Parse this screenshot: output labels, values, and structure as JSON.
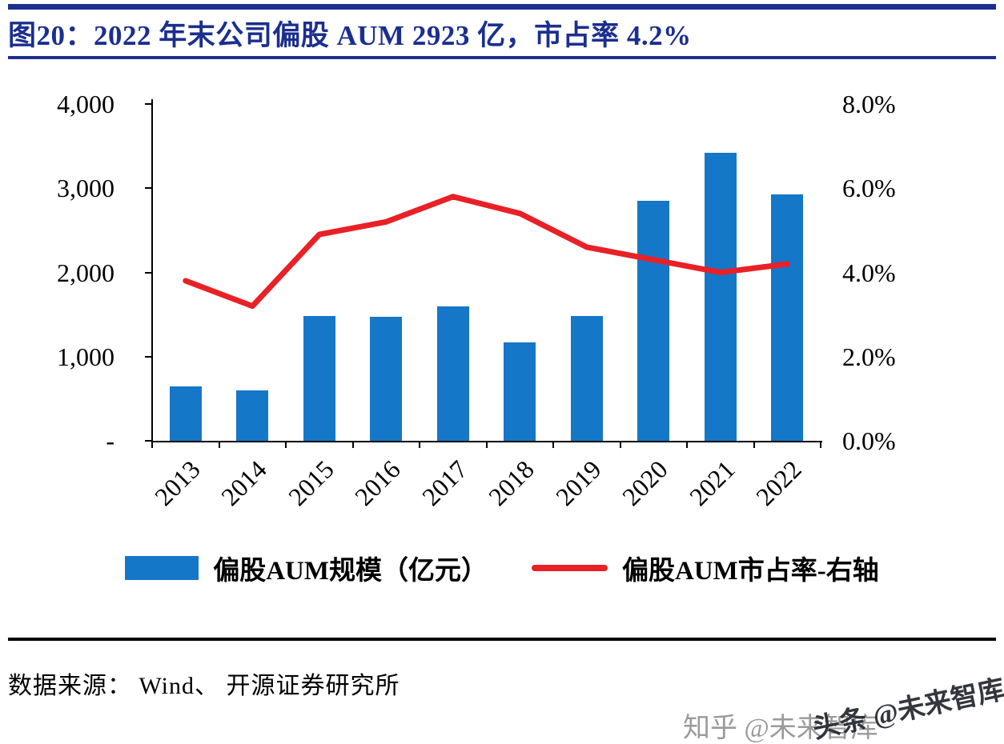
{
  "header": {
    "title": "图20：2022 年末公司偏股 AUM 2923 亿，市占率 4.2%"
  },
  "colors": {
    "navy": "#1b2f8f",
    "bar_blue": "#1577c8",
    "line_red": "#e82127",
    "axis_black": "#000000",
    "watermark_gray": "#9a9a9a"
  },
  "chart_data": {
    "type": "bar",
    "subtype": "bar+line combo",
    "title": "图20：2022 年末公司偏股 AUM 2923 亿，市占率 4.2%",
    "categories": [
      "2013",
      "2014",
      "2015",
      "2016",
      "2017",
      "2018",
      "2019",
      "2020",
      "2021",
      "2022"
    ],
    "series": [
      {
        "name": "偏股AUM规模（亿元）",
        "type": "bar",
        "axis": "left",
        "values": [
          650,
          600,
          1480,
          1470,
          1600,
          1170,
          1480,
          2850,
          3420,
          2923
        ]
      },
      {
        "name": "偏股AUM市占率-右轴",
        "type": "line",
        "axis": "right",
        "values": [
          3.8,
          3.2,
          4.9,
          5.2,
          5.8,
          5.4,
          4.6,
          4.3,
          4.0,
          4.2
        ]
      }
    ],
    "left_axis": {
      "min": 0,
      "max": 4000,
      "ticks": [
        "4,000",
        "3,000",
        "2,000",
        "1,000",
        "-"
      ]
    },
    "right_axis": {
      "min": 0,
      "max": 8,
      "ticks": [
        "8.0%",
        "6.0%",
        "4.0%",
        "2.0%",
        "0.0%"
      ]
    },
    "xlabel": "",
    "ylabel_left": "亿元",
    "ylabel_right": "%",
    "grid": false,
    "legend_position": "bottom"
  },
  "footer": {
    "source": "数据来源： Wind、 开源证券研究所"
  },
  "watermarks": [
    {
      "text": "知乎 @未来智库"
    },
    {
      "text": "头条 @未来智库"
    }
  ]
}
